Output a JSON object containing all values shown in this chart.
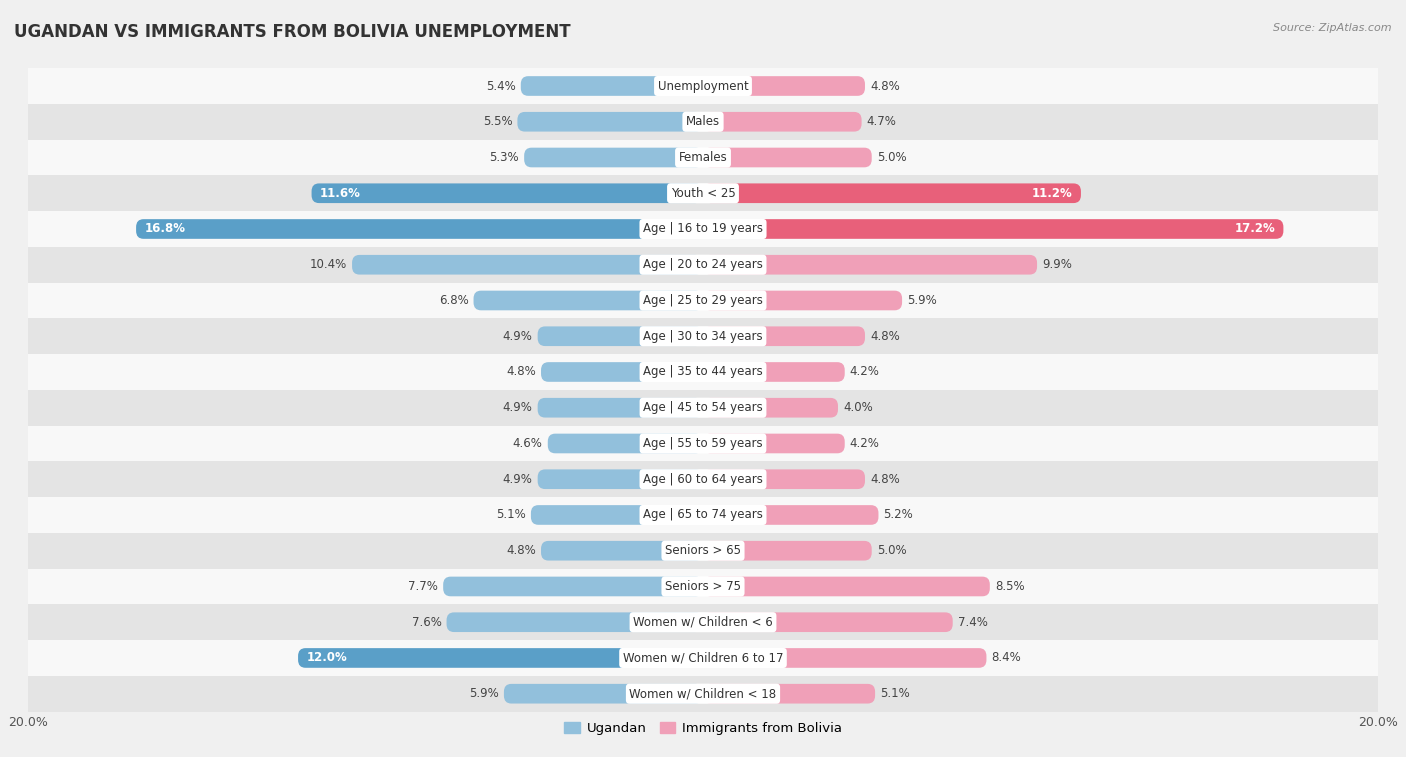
{
  "title": "UGANDAN VS IMMIGRANTS FROM BOLIVIA UNEMPLOYMENT",
  "source": "Source: ZipAtlas.com",
  "categories": [
    "Unemployment",
    "Males",
    "Females",
    "Youth < 25",
    "Age | 16 to 19 years",
    "Age | 20 to 24 years",
    "Age | 25 to 29 years",
    "Age | 30 to 34 years",
    "Age | 35 to 44 years",
    "Age | 45 to 54 years",
    "Age | 55 to 59 years",
    "Age | 60 to 64 years",
    "Age | 65 to 74 years",
    "Seniors > 65",
    "Seniors > 75",
    "Women w/ Children < 6",
    "Women w/ Children 6 to 17",
    "Women w/ Children < 18"
  ],
  "ugandan": [
    5.4,
    5.5,
    5.3,
    11.6,
    16.8,
    10.4,
    6.8,
    4.9,
    4.8,
    4.9,
    4.6,
    4.9,
    5.1,
    4.8,
    7.7,
    7.6,
    12.0,
    5.9
  ],
  "bolivia": [
    4.8,
    4.7,
    5.0,
    11.2,
    17.2,
    9.9,
    5.9,
    4.8,
    4.2,
    4.0,
    4.2,
    4.8,
    5.2,
    5.0,
    8.5,
    7.4,
    8.4,
    5.1
  ],
  "ugandan_color": "#92c0dc",
  "bolivia_color": "#f0a0b8",
  "ugandan_highlight": "#5a9fc8",
  "bolivia_highlight": "#e8607a",
  "max_val": 20.0,
  "bg_color": "#f0f0f0",
  "row_color_light": "#f8f8f8",
  "row_color_dark": "#e4e4e4",
  "legend_ugandan": "Ugandan",
  "legend_bolivia": "Immigrants from Bolivia",
  "title_fontsize": 12,
  "label_fontsize": 8.5,
  "value_fontsize": 8.5,
  "highlight_threshold": 11.0
}
